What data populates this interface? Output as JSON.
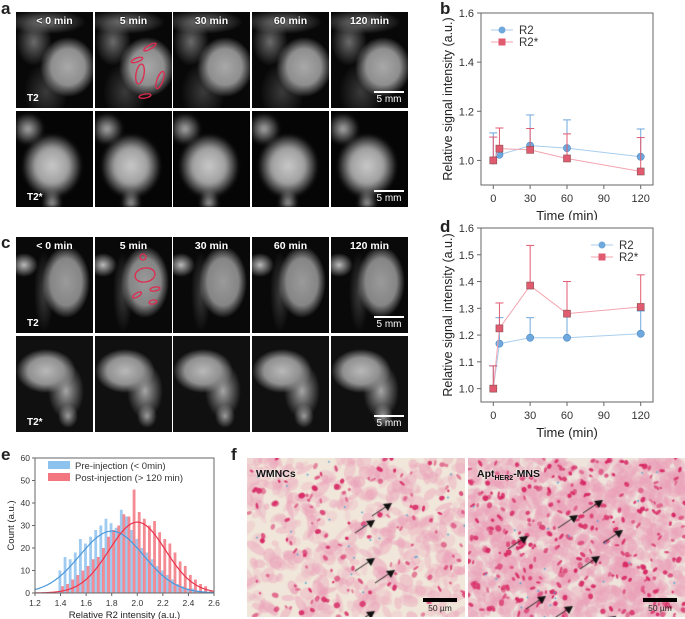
{
  "panels": {
    "a": {
      "label": "a",
      "times": [
        "< 0 min",
        "5 min",
        "30 min",
        "60 min",
        "120 min"
      ],
      "row1_seq": "T2",
      "row2_seq": "T2*",
      "scale": "5 mm"
    },
    "b": {
      "label": "b"
    },
    "c": {
      "label": "c",
      "times": [
        "< 0 min",
        "5 min",
        "30 min",
        "60 min",
        "120 min"
      ],
      "row1_seq": "T2",
      "row2_seq": "T2*",
      "scale": "5 mm"
    },
    "d": {
      "label": "d"
    },
    "e": {
      "label": "e"
    },
    "f": {
      "label": "f",
      "images": [
        {
          "title": "WMNCs",
          "scale": "50 µm"
        },
        {
          "title_main": "Apt",
          "title_sub": "HER2",
          "title_suffix": "-MNS",
          "scale": "50 µm"
        }
      ]
    }
  },
  "colors": {
    "r2": "#6fa8dc",
    "r2_line": "#a8cdee",
    "r2star": "#e05a70",
    "r2star_line": "#f3a3ae",
    "pre": "#8ec2ee",
    "post": "#f2757f",
    "pre_fit": "#4a98dc",
    "post_fit": "#e8344e"
  },
  "chart_data": [
    {
      "id": "b",
      "type": "line",
      "xlabel": "Time (min)",
      "ylabel": "Relative signal intensity (a.u.)",
      "xlim": [
        -10,
        130
      ],
      "ylim": [
        0.9,
        1.6
      ],
      "xticks": [
        "0",
        "30",
        "60",
        "90",
        "120"
      ],
      "yticks": [
        "1.0",
        "1.2",
        "1.4",
        "1.6"
      ],
      "legend_placement": "top-left",
      "x": [
        0,
        5,
        30,
        60,
        120
      ],
      "series": [
        {
          "name": "R2",
          "values": [
            1.0,
            1.023,
            1.06,
            1.05,
            1.015
          ],
          "err_upper": [
            1.112,
            1.02,
            1.185,
            1.165,
            1.128
          ],
          "marker": "circle"
        },
        {
          "name": "R2*",
          "values": [
            1.0,
            1.048,
            1.043,
            1.008,
            0.955
          ],
          "err_upper": [
            1.095,
            1.132,
            1.13,
            1.108,
            1.093
          ],
          "marker": "square"
        }
      ]
    },
    {
      "id": "d",
      "type": "line",
      "xlabel": "Time (min)",
      "ylabel": "Relative signal intensity (a.u.)",
      "xlim": [
        -10,
        130
      ],
      "ylim": [
        0.95,
        1.6
      ],
      "xticks": [
        "0",
        "30",
        "60",
        "90",
        "120"
      ],
      "yticks": [
        "1.0",
        "1.1",
        "1.2",
        "1.3",
        "1.4",
        "1.5",
        "1.6"
      ],
      "legend_placement": "top-right",
      "x": [
        0,
        5,
        30,
        60,
        120
      ],
      "series": [
        {
          "name": "R2",
          "values": [
            1.0,
            1.168,
            1.19,
            1.19,
            1.205
          ],
          "err_upper": [
            1.085,
            1.265,
            1.265,
            1.275,
            1.29
          ],
          "marker": "circle"
        },
        {
          "name": "R2*",
          "values": [
            1.0,
            1.225,
            1.385,
            1.28,
            1.305
          ],
          "err_upper": [
            1.085,
            1.32,
            1.535,
            1.4,
            1.425
          ],
          "marker": "square"
        }
      ]
    },
    {
      "id": "e",
      "type": "bar",
      "xlabel": "Relative R2 intensity (a.u.)",
      "ylabel": "Count (a.u.)",
      "xlim": [
        1.2,
        2.6
      ],
      "ylim": [
        0,
        60
      ],
      "xticks": [
        "1.2",
        "1.4",
        "1.6",
        "1.8",
        "2.0",
        "2.2",
        "2.4",
        "2.6"
      ],
      "yticks": [
        "0",
        "10",
        "20",
        "30",
        "40",
        "50",
        "60"
      ],
      "legend_placement": "top-left",
      "bin_width": 0.04,
      "series": [
        {
          "name": "Pre-injection (< 0min)",
          "bin_start": 1.4,
          "values": [
            10,
            16,
            15,
            18,
            24,
            22,
            25,
            28,
            30,
            33,
            31,
            29,
            37,
            34,
            28,
            24,
            20,
            18,
            15,
            12,
            10,
            8,
            6,
            4,
            3,
            2,
            2,
            1
          ],
          "fit": {
            "mean": 1.8,
            "sd": 0.25,
            "peak": 27.5
          }
        },
        {
          "name": "Post-injection (> 120 min)",
          "bin_start": 1.42,
          "values": [
            3,
            4,
            6,
            8,
            10,
            12,
            15,
            16,
            20,
            25,
            28,
            30,
            35,
            34,
            46,
            36,
            33,
            30,
            32,
            27,
            24,
            22,
            18,
            14,
            12,
            8,
            6,
            4,
            3,
            1
          ],
          "fit": {
            "mean": 2.0,
            "sd": 0.22,
            "peak": 31.5
          }
        }
      ]
    }
  ]
}
